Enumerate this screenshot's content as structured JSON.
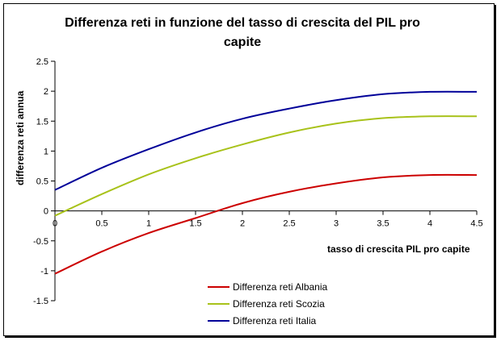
{
  "chart_data": {
    "type": "line",
    "title": "Differenza reti in funzione del tasso di crescita del PIL pro capite",
    "title_line1": "Differenza reti in funzione del tasso di crescita del PIL pro",
    "title_line2": "capite",
    "xlabel": "tasso di crescita PIL pro capite",
    "ylabel": "differenza reti annua",
    "xlim": [
      0,
      4.5
    ],
    "ylim": [
      -1.5,
      2.5
    ],
    "x_ticks": [
      "0",
      "0.5",
      "1",
      "1.5",
      "2",
      "2.5",
      "3",
      "3.5",
      "4",
      "4.5"
    ],
    "y_ticks": [
      "2.5",
      "2",
      "1.5",
      "1",
      "0.5",
      "0",
      "-0.5",
      "-1",
      "-1.5"
    ],
    "grid": false,
    "legend_position": "bottom-center",
    "x": [
      0,
      0.5,
      1,
      1.5,
      2,
      2.5,
      3,
      3.5,
      4,
      4.5
    ],
    "series": [
      {
        "name": "Differenza reti Albania",
        "color": "#cc0000",
        "values": [
          -1.05,
          -0.68,
          -0.37,
          -0.12,
          0.13,
          0.32,
          0.46,
          0.56,
          0.6,
          0.6
        ]
      },
      {
        "name": "Differenza reti Scozia",
        "color": "#a8c21a",
        "values": [
          -0.08,
          0.28,
          0.61,
          0.88,
          1.11,
          1.31,
          1.46,
          1.55,
          1.58,
          1.58
        ]
      },
      {
        "name": "Differenza reti Italia",
        "color": "#000099",
        "values": [
          0.35,
          0.72,
          1.03,
          1.31,
          1.54,
          1.71,
          1.85,
          1.95,
          1.99,
          1.99
        ]
      }
    ]
  }
}
